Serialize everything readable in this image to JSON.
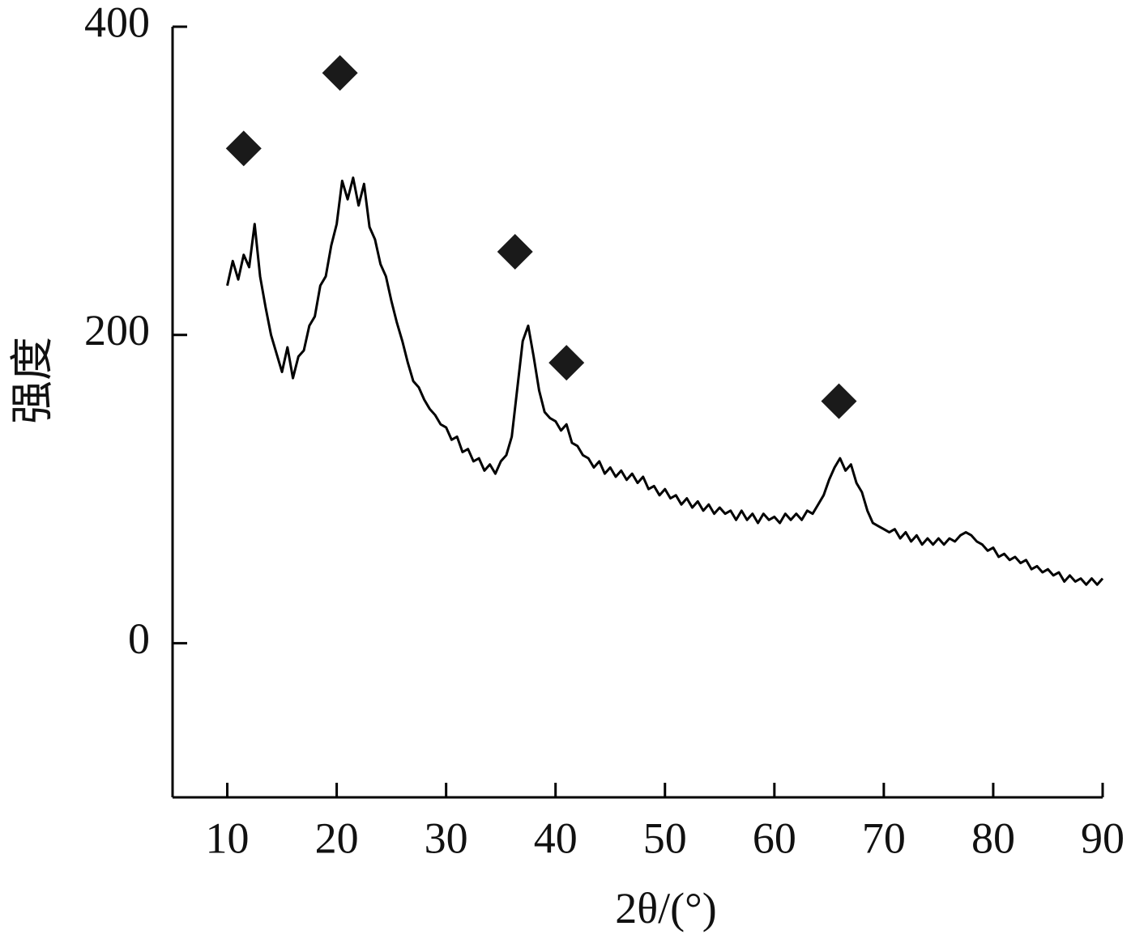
{
  "chart_data": {
    "type": "line",
    "xlabel": "2θ/(°)",
    "ylabel": "强度",
    "xlim": [
      5,
      90
    ],
    "ylim": [
      -100,
      400
    ],
    "xticks": [
      10,
      20,
      30,
      40,
      50,
      60,
      70,
      80,
      90
    ],
    "yticks": [
      0,
      200,
      400
    ],
    "grid": false,
    "series": [
      {
        "color": "#000000",
        "x": [
          10,
          10.5,
          11,
          11.5,
          12,
          12.5,
          13,
          13.5,
          14,
          14.5,
          15,
          15.5,
          16,
          16.5,
          17,
          17.5,
          18,
          18.5,
          19,
          19.5,
          20,
          20.5,
          21,
          21.5,
          22,
          22.5,
          23,
          23.5,
          24,
          24.5,
          25,
          25.5,
          26,
          26.5,
          27,
          27.5,
          28,
          28.5,
          29,
          29.5,
          30,
          30.5,
          31,
          31.5,
          32,
          32.5,
          33,
          33.5,
          34,
          34.5,
          35,
          35.5,
          36,
          36.5,
          37,
          37.5,
          38,
          38.5,
          39,
          39.5,
          40,
          40.5,
          41,
          41.5,
          42,
          42.5,
          43,
          43.5,
          44,
          44.5,
          45,
          45.5,
          46,
          46.5,
          47,
          47.5,
          48,
          48.5,
          49,
          49.5,
          50,
          50.5,
          51,
          51.5,
          52,
          52.5,
          53,
          53.5,
          54,
          54.5,
          55,
          55.5,
          56,
          56.5,
          57,
          57.5,
          58,
          58.5,
          59,
          59.5,
          60,
          60.5,
          61,
          61.5,
          62,
          62.5,
          63,
          63.5,
          64,
          64.5,
          65,
          65.5,
          66,
          66.5,
          67,
          67.5,
          68,
          68.5,
          69,
          69.5,
          70,
          70.5,
          71,
          71.5,
          72,
          72.5,
          73,
          73.5,
          74,
          74.5,
          75,
          75.5,
          76,
          76.5,
          77,
          77.5,
          78,
          78.5,
          79,
          79.5,
          80,
          80.5,
          81,
          81.5,
          82,
          82.5,
          83,
          83.5,
          84,
          84.5,
          85,
          85.5,
          86,
          86.5,
          87,
          87.5,
          88,
          88.5,
          89,
          89.5,
          90
        ],
        "values": [
          232,
          248,
          236,
          252,
          244,
          272,
          238,
          218,
          200,
          188,
          176,
          192,
          172,
          186,
          190,
          206,
          212,
          232,
          238,
          258,
          272,
          300,
          288,
          302,
          284,
          298,
          270,
          262,
          246,
          238,
          222,
          208,
          196,
          182,
          170,
          166,
          158,
          152,
          148,
          142,
          140,
          132,
          134,
          124,
          126,
          118,
          120,
          112,
          116,
          110,
          118,
          122,
          134,
          165,
          196,
          206,
          186,
          164,
          150,
          146,
          144,
          138,
          142,
          130,
          128,
          122,
          120,
          114,
          118,
          110,
          114,
          108,
          112,
          106,
          110,
          104,
          108,
          100,
          102,
          96,
          100,
          94,
          96,
          90,
          94,
          88,
          92,
          86,
          90,
          84,
          88,
          84,
          86,
          80,
          86,
          80,
          84,
          78,
          84,
          80,
          82,
          78,
          84,
          80,
          84,
          80,
          86,
          84,
          90,
          96,
          106,
          114,
          120,
          112,
          116,
          104,
          98,
          86,
          78,
          76,
          74,
          72,
          74,
          68,
          72,
          66,
          70,
          64,
          68,
          64,
          68,
          64,
          68,
          66,
          70,
          72,
          70,
          66,
          64,
          60,
          62,
          56,
          58,
          54,
          56,
          52,
          54,
          48,
          50,
          46,
          48,
          44,
          46,
          40,
          44,
          40,
          42,
          38,
          42,
          38,
          42
        ]
      },
      {
        "type": "scatter",
        "marker": "diamond",
        "color": "#1a1a1a",
        "x": [
          11.5,
          20.3,
          36.3,
          41,
          65.9
        ],
        "values": [
          321,
          370,
          254,
          182,
          157
        ]
      }
    ]
  }
}
